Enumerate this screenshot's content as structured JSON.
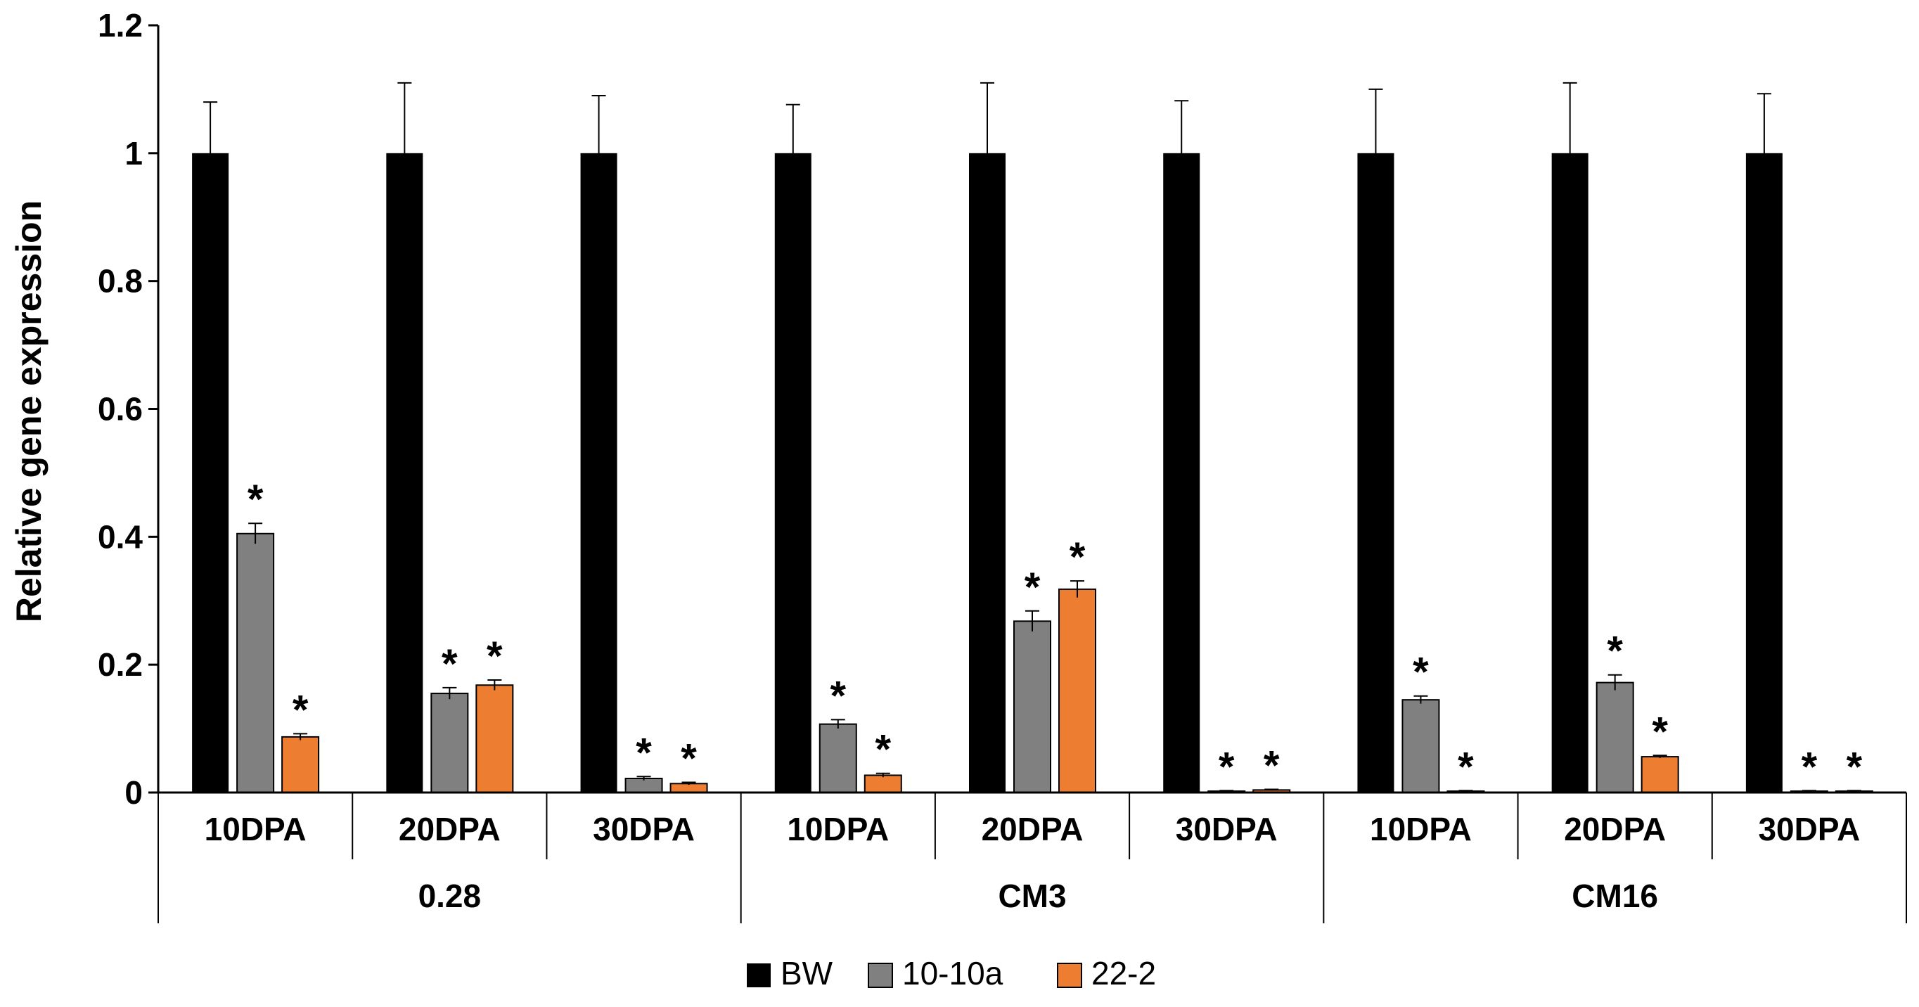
{
  "chart_data": {
    "type": "bar",
    "title": "",
    "xlabel": "",
    "ylabel": "Relative gene expression",
    "ylim": [
      0,
      1.2
    ],
    "yticks": [
      "0",
      "0.2",
      "0.4",
      "0.6",
      "0.8",
      "1",
      "1.2"
    ],
    "groups": [
      "0.28",
      "CM3",
      "CM16"
    ],
    "categories": [
      "10DPA",
      "20DPA",
      "30DPA",
      "10DPA",
      "20DPA",
      "30DPA",
      "10DPA",
      "20DPA",
      "30DPA"
    ],
    "legend_position": "bottom",
    "significance_marker": "*",
    "series": [
      {
        "name": "BW",
        "color": "#000000",
        "values": [
          1,
          1,
          1,
          1,
          1,
          1,
          1,
          1,
          1
        ],
        "errors": [
          0.08,
          0.11,
          0.09,
          0.076,
          0.11,
          0.082,
          0.1,
          0.11,
          0.093
        ],
        "significant": [
          false,
          false,
          false,
          false,
          false,
          false,
          false,
          false,
          false
        ]
      },
      {
        "name": "10-10a",
        "color": "#808080",
        "values": [
          0.405,
          0.155,
          0.022,
          0.107,
          0.268,
          0.002,
          0.145,
          0.172,
          0.002
        ],
        "errors": [
          0.016,
          0.009,
          0.003,
          0.007,
          0.016,
          0.001,
          0.006,
          0.012,
          0.001
        ],
        "significant": [
          true,
          true,
          true,
          true,
          true,
          true,
          true,
          true,
          true
        ]
      },
      {
        "name": "22-2",
        "color": "#ED7D31",
        "values": [
          0.087,
          0.168,
          0.014,
          0.027,
          0.318,
          0.004,
          0.002,
          0.056,
          0.002
        ],
        "errors": [
          0.005,
          0.008,
          0.002,
          0.003,
          0.013,
          0.001,
          0.001,
          0.002,
          0.001
        ],
        "significant": [
          true,
          true,
          true,
          true,
          true,
          true,
          true,
          true,
          true
        ]
      }
    ]
  }
}
